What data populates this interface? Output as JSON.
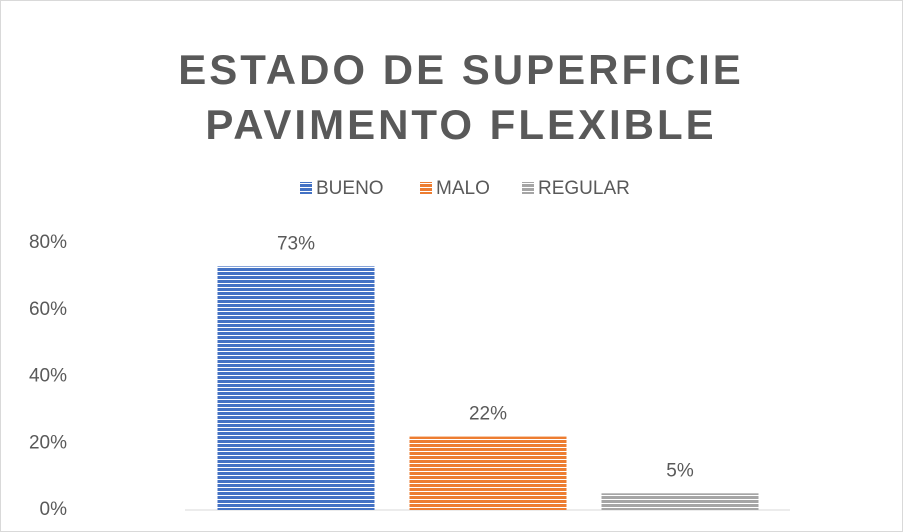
{
  "chart_data": {
    "type": "bar",
    "title": "ESTADO DE SUPERFICIE PAVIMENTO FLEXIBLE",
    "categories": [
      null
    ],
    "series": [
      {
        "name": "BUENO",
        "color": "#4472c4",
        "values": [
          73
        ],
        "value_labels": [
          "73%"
        ]
      },
      {
        "name": "MALO",
        "color": "#ed7d31",
        "values": [
          22
        ],
        "value_labels": [
          "22%"
        ]
      },
      {
        "name": "REGULAR",
        "color": "#a5a5a5",
        "values": [
          5
        ],
        "value_labels": [
          "5%"
        ]
      }
    ],
    "ylim": [
      0,
      80
    ],
    "yticks": [
      {
        "value": 0,
        "label": "0%"
      },
      {
        "value": 20,
        "label": "20%"
      },
      {
        "value": 40,
        "label": "40%"
      },
      {
        "value": 60,
        "label": "60%"
      },
      {
        "value": 80,
        "label": "80%"
      }
    ],
    "grid": false,
    "legend": "top"
  }
}
